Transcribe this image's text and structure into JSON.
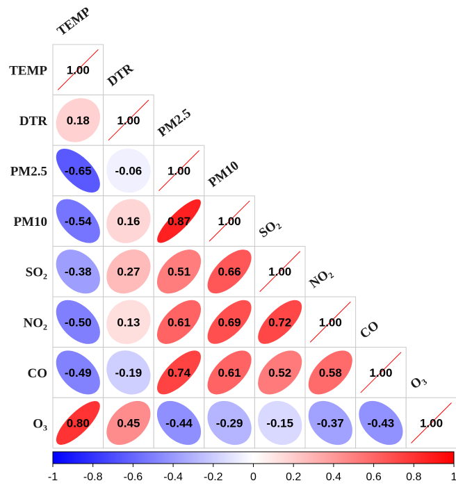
{
  "chart_data": {
    "type": "heatmap",
    "layout": "lower-triangle correlation matrix (ellipses)",
    "variables": [
      {
        "base": "TEMP",
        "sub": ""
      },
      {
        "base": "DTR",
        "sub": ""
      },
      {
        "base": "PM2.5",
        "sub": ""
      },
      {
        "base": "PM10",
        "sub": ""
      },
      {
        "base": "SO",
        "sub": "2"
      },
      {
        "base": "NO",
        "sub": "2"
      },
      {
        "base": "CO",
        "sub": ""
      },
      {
        "base": "O",
        "sub": "3"
      }
    ],
    "matrix": [
      [
        1.0
      ],
      [
        0.18,
        1.0
      ],
      [
        -0.65,
        -0.06,
        1.0
      ],
      [
        -0.54,
        0.16,
        0.87,
        1.0
      ],
      [
        -0.38,
        0.27,
        0.51,
        0.66,
        1.0
      ],
      [
        -0.5,
        0.13,
        0.61,
        0.69,
        0.72,
        1.0
      ],
      [
        -0.49,
        -0.19,
        0.74,
        0.61,
        0.52,
        0.58,
        1.0
      ],
      [
        0.8,
        0.45,
        -0.44,
        -0.29,
        -0.15,
        -0.37,
        -0.43,
        1.0
      ]
    ],
    "color_scale": {
      "min": -1,
      "max": 1,
      "colors": [
        "#0000ff",
        "#ffffff",
        "#ff0000"
      ],
      "ticks": [
        "-1",
        "-0.8",
        "-0.6",
        "-0.4",
        "-0.2",
        "0",
        "0.2",
        "0.4",
        "0.6",
        "0.8",
        "1"
      ],
      "placement": "bottom"
    },
    "diagonal_line_color": "#ff0000"
  }
}
